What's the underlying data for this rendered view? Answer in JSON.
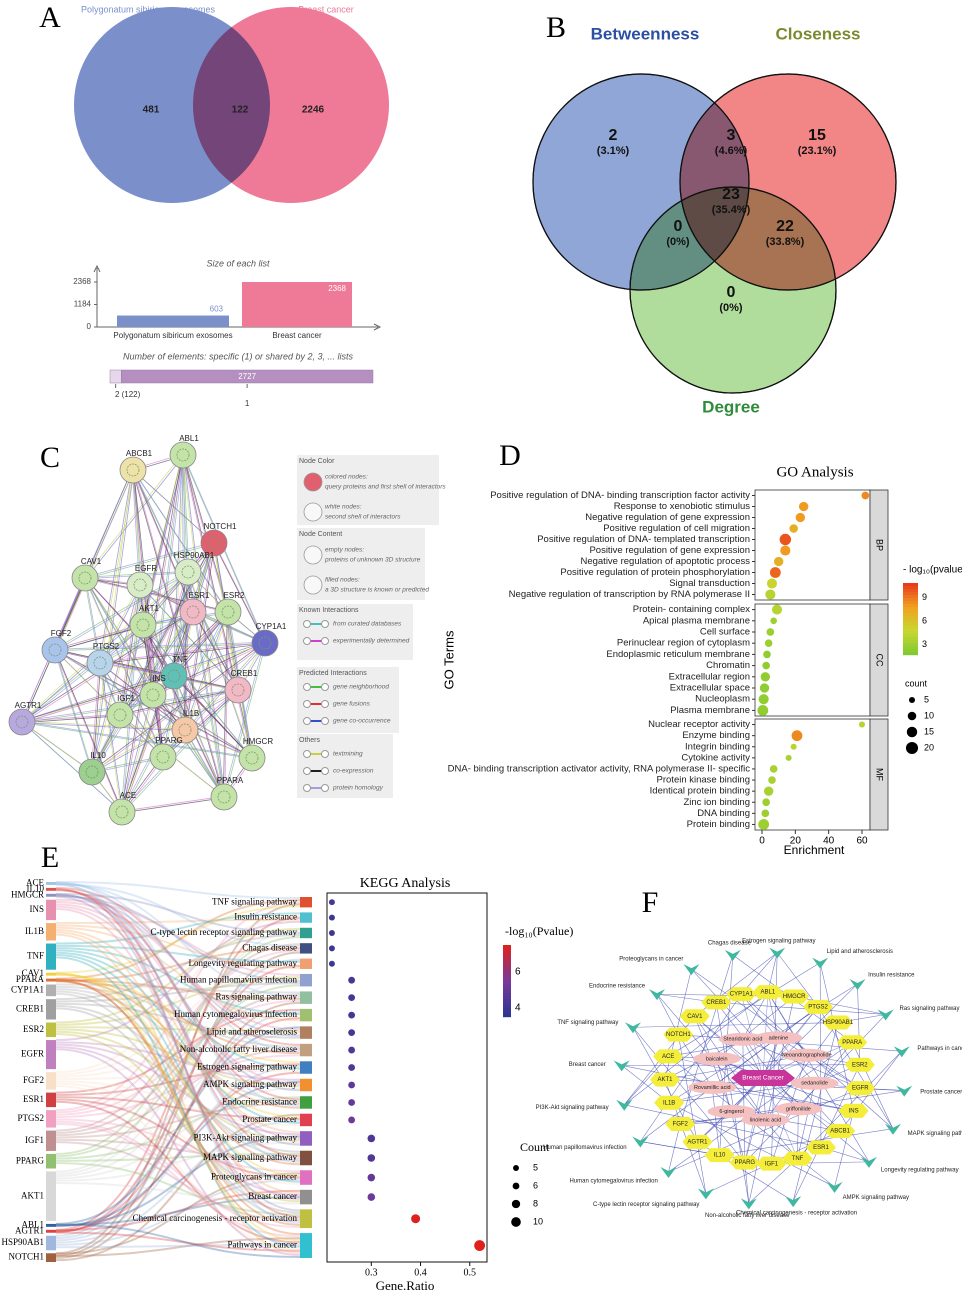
{
  "chart_data": [
    {
      "type": "venn2",
      "panel": "A",
      "sets": [
        {
          "name": "Polygonatum sibiricum exosomes",
          "color": "#7b8fcb"
        },
        {
          "name": "Breast cancer",
          "color": "#ee7a97"
        }
      ],
      "values": [
        481,
        122,
        2246
      ]
    },
    {
      "type": "bar",
      "title": "Size of each list",
      "categories": [
        "Polygonatum sibiricum exosomes",
        "Breast cancer"
      ],
      "values": [
        603,
        2368
      ],
      "colors": [
        "#7b8fcb",
        "#ee7a97"
      ],
      "ylim": [
        0,
        2368
      ],
      "yticks": [
        0,
        1184,
        2368
      ]
    },
    {
      "type": "stacked-hbar",
      "title": "Number of elements: specific (1) or shared by 2, 3, ... lists",
      "categories": [
        "2 (122)",
        "1"
      ],
      "values": [
        122,
        2727
      ],
      "colors": [
        "#e6d8ea",
        "#b48fbf"
      ],
      "xlim": [
        0,
        2849
      ]
    },
    {
      "type": "venn3",
      "panel": "B",
      "sets": [
        {
          "name": "Betweenness",
          "color": "#8fa6d6",
          "label_color": "#2b4fa3"
        },
        {
          "name": "Closeness",
          "color": "#f28585",
          "label_color": "#7d8a2e"
        },
        {
          "name": "Degree",
          "color": "#b0dc9c",
          "label_color": "#2e8b3a"
        }
      ],
      "values": [
        2,
        3,
        15,
        23,
        0,
        22,
        0
      ],
      "percents": [
        3.1,
        4.6,
        23.1,
        35.4,
        0,
        33.8,
        0
      ],
      "percent_labels": [
        "(3.1%)",
        "(4.6%)",
        "(23.1%)",
        "(35.4%)",
        "(0%)",
        "(33.8%)",
        "(0%)"
      ]
    },
    {
      "type": "network",
      "panel": "C",
      "nodes": [
        "ABL1",
        "ABCB1",
        "NOTCH1",
        "CAV1",
        "EGFR",
        "HSP90AB1",
        "ESR1",
        "ESR2",
        "CYP1A1",
        "FGF2",
        "AKT1",
        "PTGS2",
        "TNF",
        "CREB1",
        "INS",
        "IGF1",
        "AGTR1",
        "IL1B",
        "PPARG",
        "HMGCR",
        "IL10",
        "PPARA",
        "ACE"
      ],
      "node_colors": [
        "#c4e3a8",
        "#eee2a8",
        "#e06070",
        "#c4e3a8",
        "#d8ecc8",
        "#d8ecc8",
        "#f2b8c6",
        "#c4e3a8",
        "#6a6ac8",
        "#a8c4ec",
        "#c4e3a8",
        "#b8d4ec",
        "#60c0b8",
        "#f2b8c6",
        "#c4e3a8",
        "#c4e3a8",
        "#b8a8e0",
        "#f6c8a8",
        "#c4e3a8",
        "#c4e3a8",
        "#9ccf90",
        "#c4e3a8",
        "#c4e3a8"
      ],
      "legend": [
        {
          "heading": "Node Color",
          "items": [
            {
              "label": "colored nodes:",
              "note": "query proteins and first shell of interactors"
            },
            {
              "label": "white nodes:",
              "note": "second shell of interactors"
            }
          ]
        },
        {
          "heading": "Node Content",
          "items": [
            {
              "label": "empty nodes:",
              "note": "proteins of unknown 3D structure"
            },
            {
              "label": "filled nodes:",
              "note": "a 3D structure is known or predicted"
            }
          ]
        },
        {
          "heading": "Known Interactions",
          "items": [
            {
              "label": "from curated databases",
              "color": "#40c0c0"
            },
            {
              "label": "experimentally determined",
              "color": "#d040d0"
            }
          ]
        },
        {
          "heading": "Predicted Interactions",
          "items": [
            {
              "label": "gene neighborhood",
              "color": "#40c040"
            },
            {
              "label": "gene fusions",
              "color": "#e03030"
            },
            {
              "label": "gene co-occurrence",
              "color": "#3050d0"
            }
          ]
        },
        {
          "heading": "Others",
          "items": [
            {
              "label": "textmining",
              "color": "#c8d040"
            },
            {
              "label": "co-expression",
              "color": "#202020"
            },
            {
              "label": "protein homology",
              "color": "#a0a0e0"
            }
          ]
        }
      ]
    },
    {
      "type": "dotplot",
      "panel": "D",
      "title": "GO Analysis",
      "ylabel": "GO Terms",
      "xlabel": "Enrichment",
      "xlim": [
        -4.2,
        64.8
      ],
      "xticks": [
        0,
        20,
        40,
        60
      ],
      "color_title": "- log₁₀(pvalue)",
      "clim": [
        1.7,
        10.9
      ],
      "cticks": [
        3,
        6,
        9
      ],
      "size_title": "count",
      "size_legend": [
        5,
        10,
        15,
        20
      ],
      "groups": [
        {
          "name": "BP",
          "terms": [
            "Positive regulation of DNA- binding transcription factor activity",
            "Response to xenobiotic stimulus",
            "Negative regulation of gene expression",
            "Positive regulation of cell migration",
            "Positive regulation of DNA- templated transcription",
            "Positive regulation of gene expression",
            "Negative regulation of apoptotic process",
            "Positive regulation of protein phosphorylation",
            "Signal transduction",
            "Negative regulation of transcription by RNA polymerase II"
          ],
          "values": [
            62,
            25,
            23,
            19,
            14,
            14,
            10,
            8,
            6,
            5
          ],
          "pvalues": [
            8.5,
            8,
            8,
            7,
            10,
            8,
            7,
            9.5,
            5,
            4
          ],
          "counts": [
            8,
            12,
            12,
            10,
            18,
            14,
            12,
            16,
            14,
            14
          ]
        },
        {
          "name": "CC",
          "terms": [
            "Protein- containing complex",
            "Apical plasma membrane",
            "Cell surface",
            "Perinuclear region of cytoplasm",
            "Endoplasmic reticulum membrane",
            "Chromatin",
            "Extracellular region",
            "Extracellular space",
            "Nucleoplasm",
            "Plasma membrane"
          ],
          "values": [
            9,
            7,
            5,
            4,
            3,
            2.5,
            2,
            1.5,
            1,
            0.5
          ],
          "pvalues": [
            4,
            3,
            3,
            3,
            2.5,
            2.5,
            2.5,
            2.5,
            2.5,
            2.5
          ],
          "counts": [
            14,
            6,
            8,
            8,
            8,
            8,
            12,
            12,
            14,
            16
          ]
        },
        {
          "name": "MF",
          "terms": [
            "Nuclear receptor activity",
            "Enzyme binding",
            "Integrin binding",
            "Cytokine activity",
            "DNA- binding transcription activator activity, RNA polymerase II- specific",
            "Protein kinase binding",
            "Identical protein binding",
            "Zinc ion binding",
            "DNA binding",
            "Protein binding"
          ],
          "values": [
            60,
            21,
            19,
            16,
            7,
            6,
            4,
            2.5,
            2,
            1
          ],
          "pvalues": [
            4,
            8.5,
            4,
            3.5,
            3.5,
            3.5,
            3.5,
            3,
            3,
            3
          ],
          "counts": [
            5,
            16,
            5,
            5,
            8,
            8,
            12,
            8,
            8,
            16
          ]
        }
      ]
    },
    {
      "type": "sankey-dotplot",
      "panel": "E",
      "title": "KEGG Analysis",
      "xlabel": "Gene.Ratio",
      "genes": [
        "ACE",
        "IL10",
        "HMGCR",
        "INS",
        "IL1B",
        "TNF",
        "CAV1",
        "PPARA",
        "CYP1A1",
        "CREB1",
        "ESR2",
        "EGFR",
        "FGF2",
        "ESR1",
        "PTGS2",
        "IGF1",
        "PPARG",
        "AKT1",
        "ABL1",
        "AGTR1",
        "HSP90AB1",
        "NOTCH1"
      ],
      "gene_link_counts": [
        1,
        1,
        1,
        7,
        6,
        9,
        1,
        1,
        4,
        7,
        5,
        10,
        6,
        5,
        6,
        7,
        5,
        17,
        1,
        1,
        5,
        3
      ],
      "gene_colors": [
        "#a0c4e8",
        "#e05050",
        "#9090c0",
        "#e890b0",
        "#f4b070",
        "#30b0c0",
        "#f0d040",
        "#e07030",
        "#b0b0b0",
        "#a0a0a0",
        "#c0c040",
        "#c080c0",
        "#f8e0c8",
        "#d04040",
        "#f0a0c0",
        "#c09090",
        "#90c070",
        "#d8d8d8",
        "#3060a0",
        "#e04040",
        "#a0b8e0",
        "#a06040"
      ],
      "pathways": [
        "TNF signaling pathway",
        "Insulin resistance",
        "C-type lectin receptor signaling pathway",
        "Chagas disease",
        "Longevity regulating pathway",
        "Human papillomavirus infection",
        "Ras signaling pathway",
        "Human cytomegalovirus infection",
        "Lipid and atherosclerosis",
        "Non-alcoholic fatty liver disease",
        "Estrogen signaling pathway",
        "AMPK signaling pathway",
        "Endocrine resistance",
        "Prostate cancer",
        "PI3K-Akt signaling pathway",
        "MAPK signaling pathway",
        "Proteoglycans in cancer",
        "Breast cancer",
        "Chemical carcinogenesis - receptor activation",
        "Pathways in cancer"
      ],
      "pathway_colors": [
        "#e05030",
        "#50c0d0",
        "#30a090",
        "#405080",
        "#f0a070",
        "#90a0d0",
        "#90c0a0",
        "#a0c070",
        "#b08060",
        "#c0a080",
        "#4080c0",
        "#f09030",
        "#40a040",
        "#e04050",
        "#9060c0",
        "#805040",
        "#e070c0",
        "#909090",
        "#c0c040",
        "#30c0d0"
      ],
      "values": [
        0.22,
        0.22,
        0.22,
        0.22,
        0.22,
        0.26,
        0.26,
        0.26,
        0.26,
        0.26,
        0.26,
        0.26,
        0.26,
        0.26,
        0.3,
        0.3,
        0.3,
        0.3,
        0.39,
        0.52
      ],
      "pvalues": [
        4.2,
        4,
        4,
        4,
        4,
        4.3,
        4.2,
        4.2,
        4.2,
        4.5,
        4.5,
        4.8,
        5,
        5.2,
        4.4,
        4.5,
        5,
        5.2,
        7.4,
        7.5
      ],
      "counts": [
        5,
        5,
        5,
        5,
        5,
        6,
        6,
        6,
        6,
        6,
        6,
        6,
        6,
        6,
        7,
        7,
        7,
        7,
        9,
        12
      ],
      "xlim": [
        0.21,
        0.535
      ],
      "xticks": [
        0.3,
        0.4,
        0.5
      ],
      "color_title": "-log₁₀(Pvalue)",
      "clim": [
        3.5,
        7.5
      ],
      "cticks": [
        4,
        6
      ],
      "size_title": "Count",
      "size_legend": [
        5,
        6,
        8,
        10
      ]
    },
    {
      "type": "network2",
      "panel": "F",
      "center": "Breast Cancer",
      "pathways": [
        "Estrogen signaling pathway",
        "Lipid and atherosclerosis",
        "Insulin resistance",
        "Ras signaling pathway",
        "Pathways in cancer",
        "Prostate cancer",
        "MAPK signaling pathway",
        "Longevity regulating pathway",
        "AMPK signaling pathway",
        "Chemical carcinogenesis - receptor activation",
        "Non-alcoholic fatty liver disease",
        "C-type lectin receptor signaling pathway",
        "Human cytomegalovirus infection",
        "Human papillomavirus infection",
        "PI3K-Akt signaling pathway",
        "Breast cancer",
        "TNF signaling pathway",
        "Endocrine resistance",
        "Proteoglycans in cancer",
        "Chagas disease"
      ],
      "genes": [
        "ABL1",
        "HMGCR",
        "PTGS2",
        "HSP90AB1",
        "PPARA",
        "ESR2",
        "EGFR",
        "INS",
        "ABCB1",
        "ESR1",
        "TNF",
        "IGF1",
        "PPARG",
        "IL10",
        "AGTR1",
        "FGF2",
        "IL1B",
        "AKT1",
        "ACE",
        "NOTCH1",
        "CAV1",
        "CREB1",
        "CYP1A1"
      ],
      "compounds": [
        "adenine",
        "Neoandrographolide",
        "sedanolide",
        "griffonilide",
        "linolenic acid",
        "6-gingerol",
        "Rovamillic acid",
        "baicalein",
        "Stearidonic acid"
      ]
    }
  ]
}
